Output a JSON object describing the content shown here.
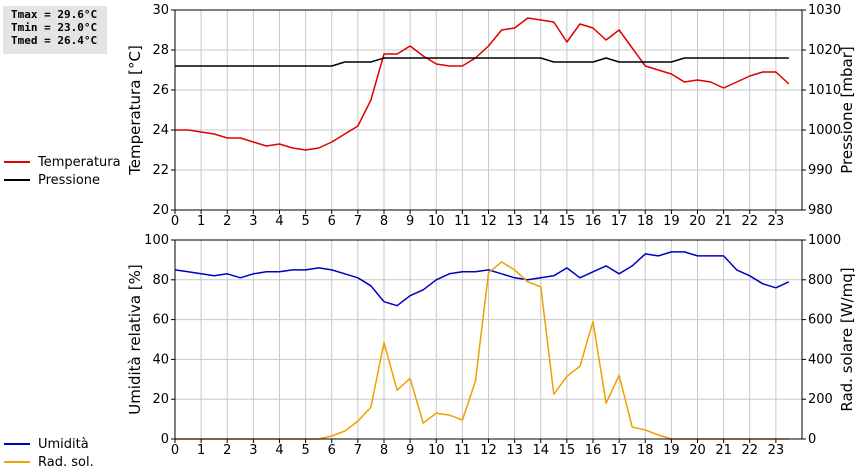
{
  "stats": {
    "tmax": "Tmax = 29.6°C",
    "tmin": "Tmin = 23.0°C",
    "tmed": "Tmed = 26.4°C"
  },
  "legend_top": [
    {
      "label": "Temperatura",
      "color": "#e00000"
    },
    {
      "label": "Pressione",
      "color": "#000000"
    }
  ],
  "legend_bottom": [
    {
      "label": "Umidità",
      "color": "#0000c0"
    },
    {
      "label": "Rad. sol.",
      "color": "#f0a000"
    }
  ],
  "chart_data": [
    {
      "type": "line",
      "x_ticks": [
        0,
        1,
        2,
        3,
        4,
        5,
        6,
        7,
        8,
        9,
        10,
        11,
        12,
        13,
        14,
        15,
        16,
        17,
        18,
        19,
        20,
        21,
        22,
        23
      ],
      "xlim": [
        0,
        24
      ],
      "ylabel": "Temperatura [°C]",
      "ylim": [
        20,
        30
      ],
      "y_ticks": [
        20,
        22,
        24,
        26,
        28,
        30
      ],
      "y2label": "Pressione [mbar]",
      "y2lim": [
        980,
        1030
      ],
      "y2_ticks": [
        980,
        990,
        1000,
        1010,
        1020,
        1030
      ],
      "series": [
        {
          "name": "Temperatura",
          "axis": "left",
          "color": "#e00000",
          "x": [
            0,
            0.5,
            1,
            1.5,
            2,
            2.5,
            3,
            3.5,
            4,
            4.5,
            5,
            5.5,
            6,
            6.5,
            7,
            7.5,
            8,
            8.5,
            9,
            9.5,
            10,
            10.5,
            11,
            11.5,
            12,
            12.5,
            13,
            13.5,
            14,
            14.5,
            15,
            15.5,
            16,
            16.5,
            17,
            17.5,
            18,
            18.5,
            19,
            19.5,
            20,
            20.5,
            21,
            21.5,
            22,
            22.5,
            23,
            23.5
          ],
          "values": [
            24.0,
            24.0,
            23.9,
            23.8,
            23.6,
            23.6,
            23.4,
            23.2,
            23.3,
            23.1,
            23.0,
            23.1,
            23.4,
            23.8,
            24.2,
            25.5,
            27.8,
            27.8,
            28.2,
            27.7,
            27.3,
            27.2,
            27.2,
            27.6,
            28.2,
            29.0,
            29.1,
            29.6,
            29.5,
            29.4,
            28.4,
            29.3,
            29.1,
            28.5,
            29.0,
            28.1,
            27.2,
            27.0,
            26.8,
            26.4,
            26.5,
            26.4,
            26.1,
            26.4,
            26.7,
            26.9,
            26.9,
            26.3
          ]
        },
        {
          "name": "Pressione",
          "axis": "right",
          "color": "#000000",
          "x": [
            0,
            1,
            2,
            3,
            4,
            5,
            6,
            6.5,
            7,
            7.5,
            8,
            9,
            10,
            11,
            12,
            13,
            14,
            14.5,
            15,
            15.5,
            16,
            16.5,
            17,
            17.5,
            18,
            19,
            19.5,
            20,
            21,
            22,
            23,
            23.5
          ],
          "values": [
            1016,
            1016,
            1016,
            1016,
            1016,
            1016,
            1016,
            1017,
            1017,
            1017,
            1018,
            1018,
            1018,
            1018,
            1018,
            1018,
            1018,
            1017,
            1017,
            1017,
            1017,
            1018,
            1017,
            1017,
            1017,
            1017,
            1018,
            1018,
            1018,
            1018,
            1018,
            1018
          ]
        }
      ]
    },
    {
      "type": "line",
      "x_ticks": [
        0,
        1,
        2,
        3,
        4,
        5,
        6,
        7,
        8,
        9,
        10,
        11,
        12,
        13,
        14,
        15,
        16,
        17,
        18,
        19,
        20,
        21,
        22,
        23
      ],
      "xlim": [
        0,
        24
      ],
      "ylabel": "Umidità relativa [%]",
      "ylim": [
        0,
        100
      ],
      "y_ticks": [
        0,
        20,
        40,
        60,
        80,
        100
      ],
      "y2label": "Rad. solare [W/mq]",
      "y2lim": [
        0,
        1000
      ],
      "y2_ticks": [
        0,
        200,
        400,
        600,
        800,
        1000
      ],
      "series": [
        {
          "name": "Umidità",
          "axis": "left",
          "color": "#0000c0",
          "x": [
            0,
            0.5,
            1,
            1.5,
            2,
            2.5,
            3,
            3.5,
            4,
            4.5,
            5,
            5.5,
            6,
            6.5,
            7,
            7.5,
            8,
            8.5,
            9,
            9.5,
            10,
            10.5,
            11,
            11.5,
            12,
            12.5,
            13,
            13.5,
            14,
            14.5,
            15,
            15.5,
            16,
            16.5,
            17,
            17.5,
            18,
            18.5,
            19,
            19.5,
            20,
            20.5,
            21,
            21.5,
            22,
            22.5,
            23,
            23.5
          ],
          "values": [
            85,
            84,
            83,
            82,
            83,
            81,
            83,
            84,
            84,
            85,
            85,
            86,
            85,
            83,
            81,
            77,
            69,
            67,
            72,
            75,
            80,
            83,
            84,
            84,
            85,
            83,
            81,
            80,
            81,
            82,
            86,
            81,
            84,
            87,
            83,
            87,
            93,
            92,
            94,
            94,
            92,
            92,
            92,
            85,
            82,
            78,
            76,
            79
          ]
        },
        {
          "name": "Rad. sol.",
          "axis": "right",
          "color": "#f0a000",
          "x": [
            0,
            0.5,
            1,
            1.5,
            2,
            2.5,
            3,
            3.5,
            4,
            4.5,
            5,
            5.5,
            6,
            6.5,
            7,
            7.5,
            8,
            8.5,
            9,
            9.5,
            10,
            10.5,
            11,
            11.5,
            12,
            12.5,
            13,
            13.5,
            14,
            14.5,
            15,
            15.5,
            16,
            16.5,
            17,
            17.5,
            18,
            18.5,
            19,
            19.5,
            20,
            20.5,
            21,
            21.5,
            22,
            22.5,
            23,
            23.5
          ],
          "values": [
            0,
            0,
            0,
            0,
            0,
            0,
            0,
            0,
            0,
            0,
            0,
            0,
            15,
            40,
            90,
            160,
            485,
            245,
            305,
            80,
            130,
            120,
            95,
            290,
            835,
            890,
            850,
            790,
            765,
            225,
            315,
            365,
            590,
            180,
            320,
            60,
            45,
            20,
            0,
            0,
            0,
            0,
            0,
            0,
            0,
            0,
            0,
            0
          ]
        }
      ]
    }
  ]
}
